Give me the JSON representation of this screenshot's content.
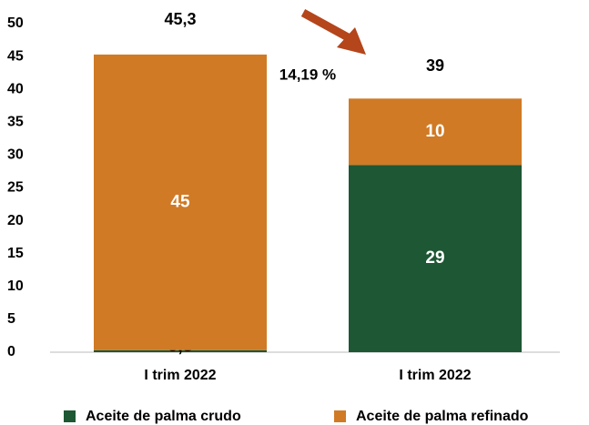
{
  "chart_data": {
    "type": "stacked_bar",
    "categories": [
      "I trim 2022",
      "I trim 2022"
    ],
    "series": [
      {
        "name": "Aceite de palma crudo",
        "color": "#1d5733",
        "values": [
          0.3,
          28.5
        ],
        "value_labels": [
          "0,3",
          "29"
        ]
      },
      {
        "name": "Aceite de palma refinado",
        "color": "#d07a25",
        "values": [
          45,
          10.1
        ],
        "value_labels": [
          "45",
          "10"
        ]
      }
    ],
    "total_labels": [
      "45,3",
      "39"
    ],
    "annotation": "14,19 %",
    "ylim": [
      0,
      50
    ],
    "yticks": [
      0,
      5,
      10,
      15,
      20,
      25,
      30,
      35,
      40,
      45,
      50
    ],
    "grid": false,
    "legend": "bottom"
  }
}
